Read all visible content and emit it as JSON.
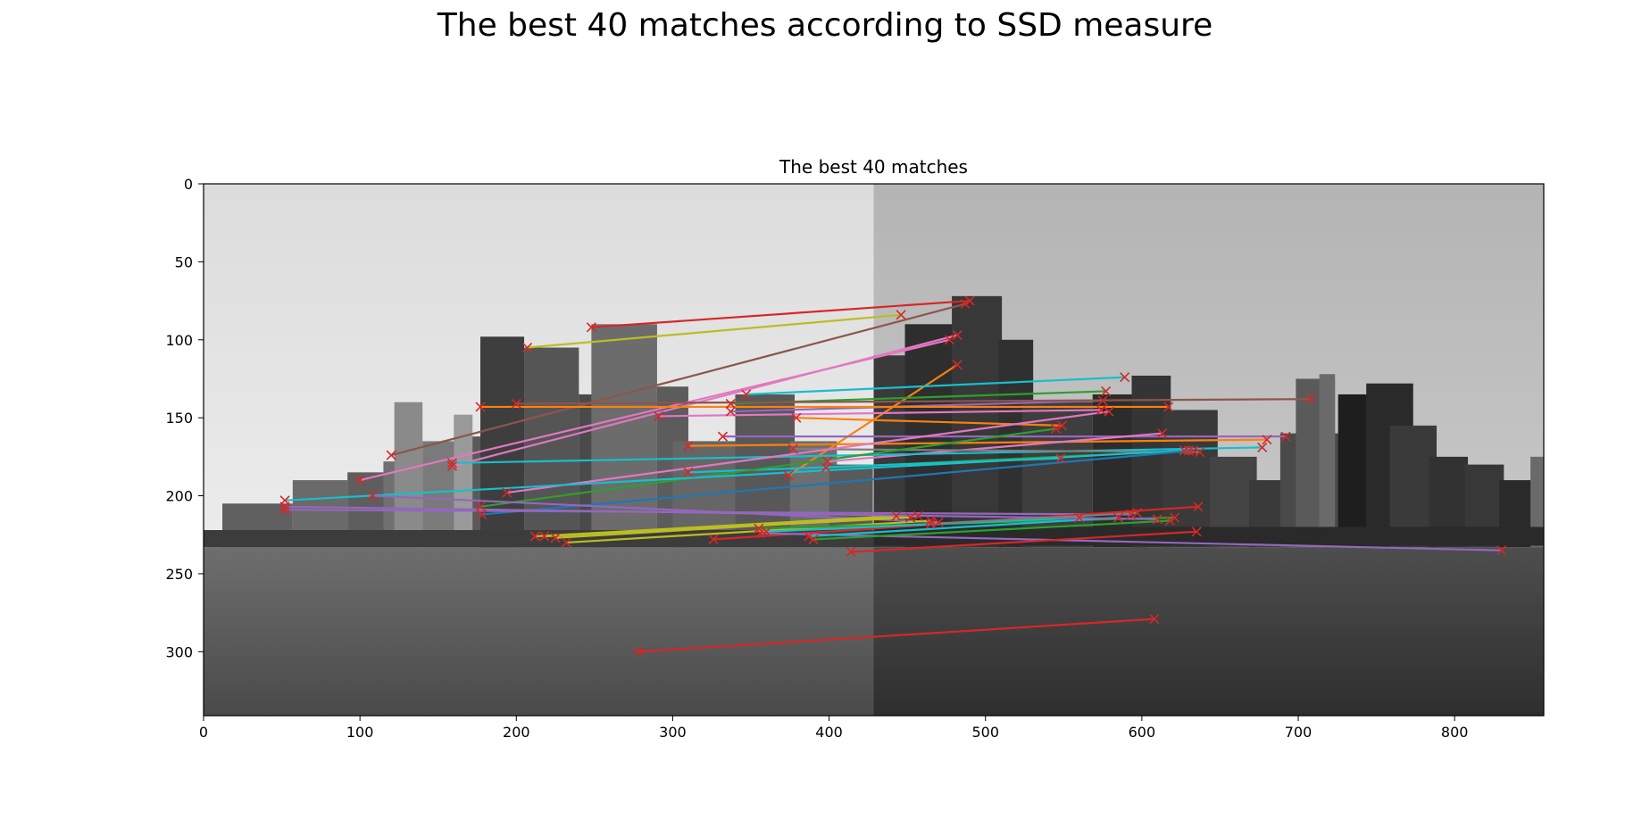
{
  "figure": {
    "suptitle": "The best 40 matches according to SSD measure"
  },
  "chart_data": {
    "type": "scatter",
    "title": "The best 40 matches",
    "xlabel": "",
    "ylabel": "",
    "xlim": [
      0,
      857
    ],
    "ylim": [
      341,
      0
    ],
    "xticks": [
      0,
      100,
      200,
      300,
      400,
      500,
      600,
      700,
      800
    ],
    "yticks": [
      0,
      50,
      100,
      150,
      200,
      250,
      300
    ],
    "grid": false,
    "image_split_x": 428.5,
    "marker": "x",
    "marker_color": "#d62728",
    "matches": [
      {
        "p1": [
          248,
          92
        ],
        "p2": [
          490,
          75
        ],
        "color": "#d62728"
      },
      {
        "p1": [
          207,
          105
        ],
        "p2": [
          446,
          84
        ],
        "color": "#bcbd22"
      },
      {
        "p1": [
          120,
          174
        ],
        "p2": [
          487,
          77
        ],
        "color": "#8c564b"
      },
      {
        "p1": [
          100,
          190
        ],
        "p2": [
          477,
          100
        ],
        "color": "#e377c2"
      },
      {
        "p1": [
          159,
          181
        ],
        "p2": [
          482,
          97
        ],
        "color": "#e377c2"
      },
      {
        "p1": [
          374,
          187
        ],
        "p2": [
          482,
          116
        ],
        "color": "#ff7f0e"
      },
      {
        "p1": [
          347,
          135
        ],
        "p2": [
          589,
          124
        ],
        "color": "#17becf"
      },
      {
        "p1": [
          337,
          141
        ],
        "p2": [
          577,
          133
        ],
        "color": "#2ca02c"
      },
      {
        "p1": [
          337,
          146
        ],
        "p2": [
          575,
          139
        ],
        "color": "#9467bd"
      },
      {
        "p1": [
          200,
          141
        ],
        "p2": [
          708,
          138
        ],
        "color": "#8c564b"
      },
      {
        "p1": [
          177,
          143
        ],
        "p2": [
          617,
          143
        ],
        "color": "#ff7f0e"
      },
      {
        "p1": [
          291,
          149
        ],
        "p2": [
          574,
          145
        ],
        "color": "#e377c2"
      },
      {
        "p1": [
          379,
          150
        ],
        "p2": [
          549,
          155
        ],
        "color": "#ff7f0e"
      },
      {
        "p1": [
          332,
          162
        ],
        "p2": [
          692,
          162
        ],
        "color": "#9467bd"
      },
      {
        "p1": [
          310,
          168
        ],
        "p2": [
          680,
          164
        ],
        "color": "#ff7f0e"
      },
      {
        "p1": [
          399,
          178
        ],
        "p2": [
          613,
          160
        ],
        "color": "#e377c2"
      },
      {
        "p1": [
          159,
          179
        ],
        "p2": [
          677,
          169
        ],
        "color": "#17becf"
      },
      {
        "p1": [
          377,
          170
        ],
        "p2": [
          637,
          172
        ],
        "color": "#7f7f7f"
      },
      {
        "p1": [
          398,
          182
        ],
        "p2": [
          630,
          171
        ],
        "color": "#2ca02c"
      },
      {
        "p1": [
          310,
          185
        ],
        "p2": [
          548,
          176
        ],
        "color": "#17becf"
      },
      {
        "p1": [
          194,
          198
        ],
        "p2": [
          579,
          146
        ],
        "color": "#e377c2"
      },
      {
        "p1": [
          177,
          207
        ],
        "p2": [
          545,
          157
        ],
        "color": "#2ca02c"
      },
      {
        "p1": [
          52,
          203
        ],
        "p2": [
          627,
          171
        ],
        "color": "#17becf"
      },
      {
        "p1": [
          178,
          212
        ],
        "p2": [
          633,
          171
        ],
        "color": "#1f77b4"
      },
      {
        "p1": [
          108,
          200
        ],
        "p2": [
          470,
          217
        ],
        "color": "#9467bd"
      },
      {
        "p1": [
          52,
          209
        ],
        "p2": [
          593,
          212
        ],
        "color": "#9467bd"
      },
      {
        "p1": [
          212,
          226
        ],
        "p2": [
          443,
          213
        ],
        "color": "#bcbd22"
      },
      {
        "p1": [
          225,
          227
        ],
        "p2": [
          457,
          213
        ],
        "color": "#bcbd22"
      },
      {
        "p1": [
          232,
          230
        ],
        "p2": [
          465,
          216
        ],
        "color": "#bcbd22"
      },
      {
        "p1": [
          355,
          221
        ],
        "p2": [
          621,
          214
        ],
        "color": "#2ca02c"
      },
      {
        "p1": [
          326,
          228
        ],
        "p2": [
          636,
          207
        ],
        "color": "#d62728"
      },
      {
        "p1": [
          356,
          224
        ],
        "p2": [
          830,
          235
        ],
        "color": "#9467bd"
      },
      {
        "p1": [
          387,
          226
        ],
        "p2": [
          585,
          214
        ],
        "color": "#17becf"
      },
      {
        "p1": [
          414,
          236
        ],
        "p2": [
          635,
          223
        ],
        "color": "#d62728"
      },
      {
        "p1": [
          278,
          300
        ],
        "p2": [
          608,
          279
        ],
        "color": "#d62728"
      },
      {
        "p1": [
          218,
          226
        ],
        "p2": [
          452,
          214
        ],
        "color": "#bcbd22"
      },
      {
        "p1": [
          360,
          223
        ],
        "p2": [
          560,
          214
        ],
        "color": "#17becf"
      },
      {
        "p1": [
          390,
          228
        ],
        "p2": [
          618,
          216
        ],
        "color": "#2ca02c"
      },
      {
        "p1": [
          52,
          207
        ],
        "p2": [
          610,
          215
        ],
        "color": "#9467bd"
      },
      {
        "p1": [
          465,
          218
        ],
        "p2": [
          597,
          211
        ],
        "color": "#7f7f7f"
      }
    ]
  }
}
